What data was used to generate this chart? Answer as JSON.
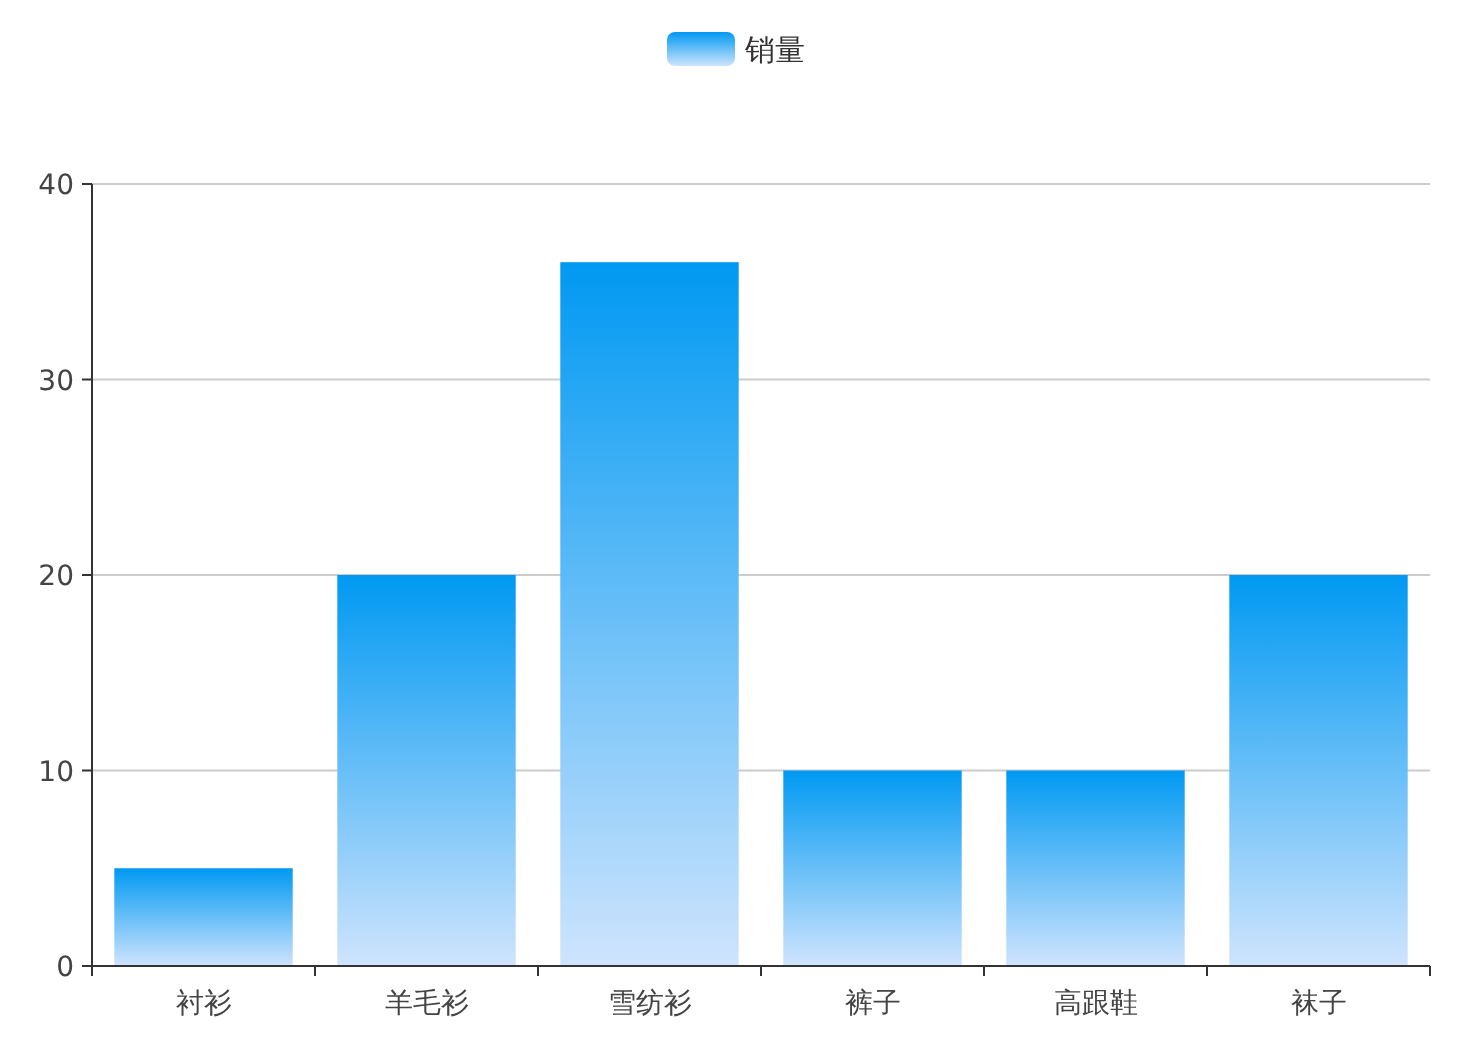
{
  "chart_data": {
    "type": "bar",
    "legend": "top",
    "grid": "y",
    "ylim": [
      0,
      40
    ],
    "yticks": [
      0,
      10,
      20,
      30,
      40
    ],
    "categories": [
      "衬衫",
      "羊毛衫",
      "雪纺衫",
      "裤子",
      "高跟鞋",
      "袜子"
    ],
    "series": [
      {
        "name": "销量",
        "color": "#0099f2",
        "values": [
          5,
          20,
          36,
          10,
          10,
          20
        ]
      }
    ]
  }
}
